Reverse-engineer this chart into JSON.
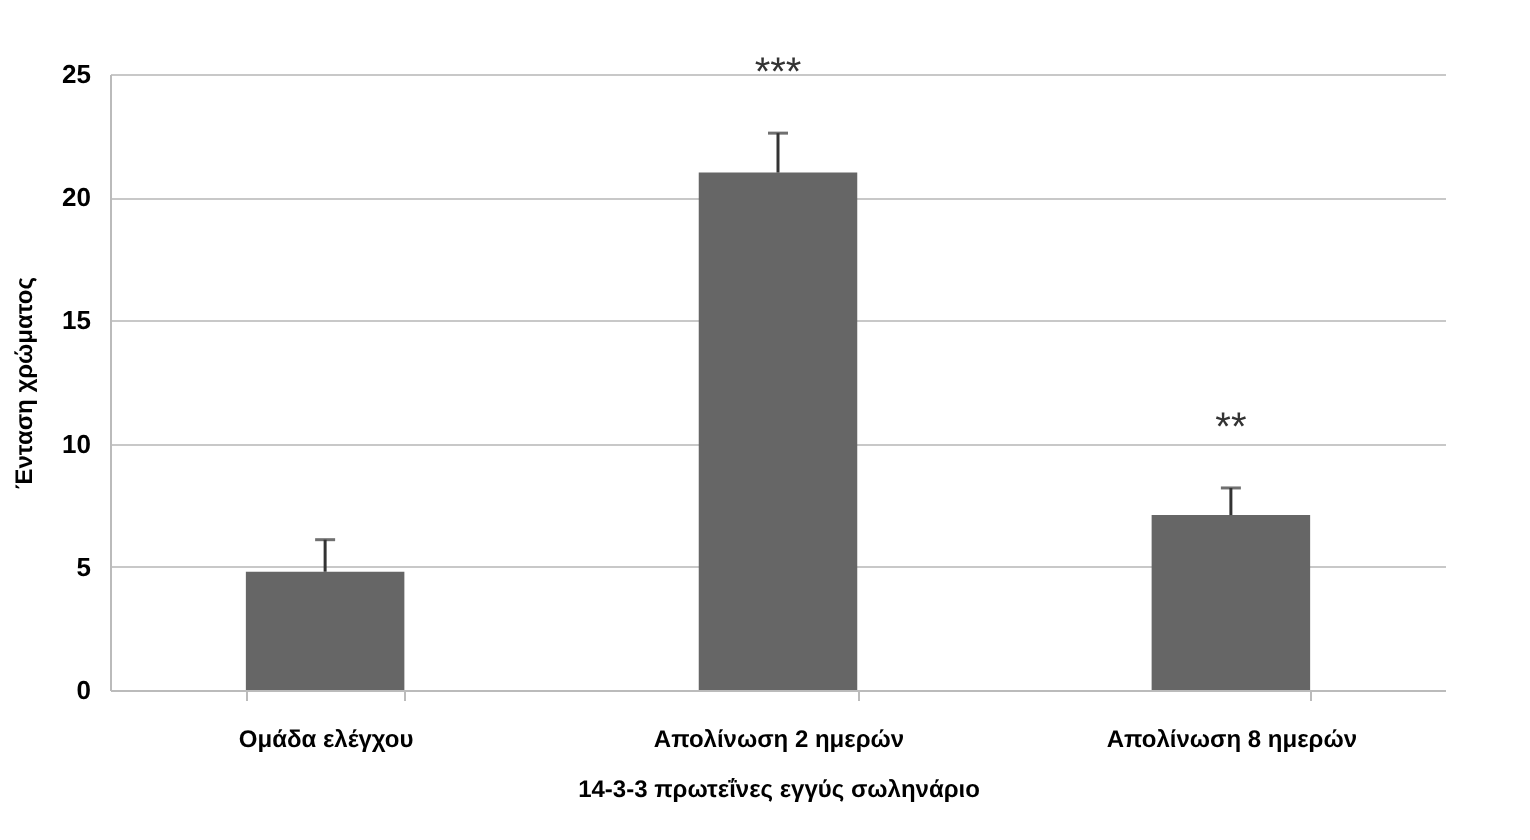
{
  "chart_data": {
    "type": "bar",
    "xlabel": "14-3-3 πρωτεΐνες εγγύς σωληνάριο",
    "ylabel": "Ένταση χρώματος",
    "categories": [
      "Ομάδα ελέγχου",
      "Απολίνωση 2 ημερών",
      "Απολίνωση  8 ημερών"
    ],
    "values": [
      4.8,
      21.0,
      7.1
    ],
    "color": "#666666",
    "errors": [
      [
        4.8,
        6.1
      ],
      [
        21.0,
        22.6
      ],
      [
        7.1,
        8.2
      ]
    ],
    "ylim": [
      0,
      25
    ],
    "yticks": [
      0,
      5,
      10,
      15,
      20,
      25
    ],
    "grid": "y",
    "annotations": [
      "***",
      "**"
    ]
  }
}
